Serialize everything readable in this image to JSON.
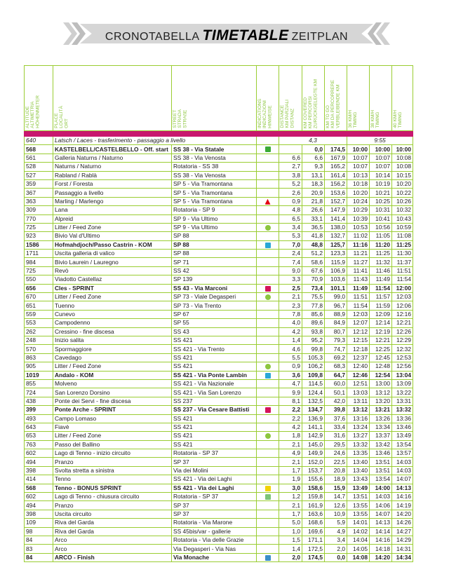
{
  "banner": {
    "left": "CRONOTABELLA",
    "main": "TIMETABLE",
    "right": "ZEITPLAN"
  },
  "headers": [
    "ALTITUDE\nALTIMETRIA\nHÖHENMETER",
    "PLACE\nLOCALITÀ\nORT",
    "STREET\nSTRADA\nSTRAßE",
    "INDICATIONS\nINDICAZIONI\nHINWEISE",
    "DISTANCE\nKM PARZIALI\nDISTANZ",
    "KM COVERED\nKM PERCORSI\nZURÜCKGELEGTE KM",
    "KM TO GO\nKM DA PERCORRERE\nVERBLEIBENDE KM",
    "36 KM/H\nTIMING",
    "38 KM/H\nTIMING",
    "40 KM/H\nTIMING"
  ],
  "colors": {
    "accent": "#8cc63f",
    "band": "#c8176e"
  },
  "transfer": {
    "altitude": "640",
    "place": "Latsch / Laces - trasferimento - passaggio a livello",
    "distance": "4,3",
    "time": "9:55"
  },
  "rows": [
    [
      "568",
      "KASTELBELL/CASTELBELLO - Off. start",
      "SS 38 - Via Statale",
      "start-flag-icon",
      "",
      "0,0",
      "174,5",
      "10:00",
      "10:00",
      "10:00",
      1
    ],
    [
      "561",
      "Galleria Naturns / Naturno",
      "SS 38 - Via Venosta",
      "",
      "6,6",
      "6,6",
      "167,9",
      "10:07",
      "10:07",
      "10:08",
      0
    ],
    [
      "528",
      "Naturns / Naturno",
      "Rotatoria - SS 38",
      "",
      "2,7",
      "9,3",
      "165,2",
      "10:07",
      "10:07",
      "10:08",
      0
    ],
    [
      "527",
      "Rabland / Rablà",
      "SS 38 - Via Venosta",
      "",
      "3,8",
      "13,1",
      "161,4",
      "10:13",
      "10:14",
      "10:15",
      0
    ],
    [
      "359",
      "Forst / Foresta",
      "SP 5 - Via Tramontana",
      "",
      "5,2",
      "18,3",
      "156,2",
      "10:18",
      "10:19",
      "10:20",
      0
    ],
    [
      "367",
      "Passaggio a livello",
      "SP 5 - Via Tramontana",
      "",
      "2,6",
      "20,9",
      "153,6",
      "10:20",
      "10:21",
      "10:22",
      0
    ],
    [
      "363",
      "Marling / Marlengo",
      "SP 5 - Via Tramontana",
      "danger-triangle-icon",
      "0,9",
      "21,8",
      "152,7",
      "10:24",
      "10:25",
      "10:26",
      0
    ],
    [
      "309",
      "Lana",
      "Rotatoria - SP 9",
      "",
      "4,8",
      "26,6",
      "147,9",
      "10:29",
      "10:31",
      "10:32",
      0
    ],
    [
      "770",
      "Alpreid",
      "SP 9 - Via Ultimo",
      "",
      "6,5",
      "33,1",
      "141,4",
      "10:39",
      "10:41",
      "10:43",
      0
    ],
    [
      "725",
      "Litter / Feed Zone",
      "SP 9 - Via Ultimo",
      "feed-zone-icon",
      "3,4",
      "36,5",
      "138,0",
      "10:53",
      "10:56",
      "10:59",
      0
    ],
    [
      "923",
      "Bivio Val d'Ultimo",
      "SP 88",
      "",
      "5,3",
      "41,8",
      "132,7",
      "11:02",
      "11:05",
      "11:08",
      0
    ],
    [
      "1586",
      "Hofmahdjoch/Passo Castrin - KOM",
      "SP 88",
      "kom-icon",
      "7,0",
      "48,8",
      "125,7",
      "11:16",
      "11:20",
      "11:25",
      1
    ],
    [
      "1711",
      "Uscita galleria di valico",
      "SP 88",
      "",
      "2,4",
      "51,2",
      "123,3",
      "11:21",
      "11:25",
      "11:30",
      0
    ],
    [
      "984",
      "Bivio Laurein / Lauregno",
      "SP 71",
      "",
      "7,4",
      "58,6",
      "115,9",
      "11:27",
      "11:32",
      "11:37",
      0
    ],
    [
      "725",
      "Revò",
      "SS 42",
      "",
      "9,0",
      "67,6",
      "106,9",
      "11:41",
      "11:46",
      "11:51",
      0
    ],
    [
      "550",
      "Viadotto Castellaz",
      "SP 139",
      "",
      "3,3",
      "70,9",
      "103,6",
      "11:43",
      "11:49",
      "11:54",
      0
    ],
    [
      "656",
      "Cles - SPRINT",
      "SS 43 - Via Marconi",
      "sprint-icon",
      "2,5",
      "73,4",
      "101,1",
      "11:49",
      "11:54",
      "12:00",
      1
    ],
    [
      "670",
      "Litter / Feed Zone",
      "SP 73 - Viale Degasperi",
      "feed-zone-icon",
      "2,1",
      "75,5",
      "99,0",
      "11:51",
      "11:57",
      "12:03",
      0
    ],
    [
      "651",
      "Tuenno",
      "SP 73 - Via Trento",
      "",
      "2,3",
      "77,8",
      "96,7",
      "11:54",
      "11:59",
      "12:06",
      0
    ],
    [
      "559",
      "Cunevo",
      "SP 67",
      "",
      "7,8",
      "85,6",
      "88,9",
      "12:03",
      "12:09",
      "12:16",
      0
    ],
    [
      "553",
      "Campodenno",
      "SP 55",
      "",
      "4,0",
      "89,6",
      "84,9",
      "12:07",
      "12:14",
      "12:21",
      0
    ],
    [
      "262",
      "Cressino - fine discesa",
      "SS 43",
      "",
      "4,2",
      "93,8",
      "80,7",
      "12:12",
      "12:19",
      "12:26",
      0
    ],
    [
      "248",
      "Inizio salita",
      "SS 421",
      "",
      "1,4",
      "95,2",
      "79,3",
      "12:15",
      "12:21",
      "12:29",
      0
    ],
    [
      "570",
      "Spormaggiore",
      "SS 421 - Via Trento",
      "",
      "4,6",
      "99,8",
      "74,7",
      "12:18",
      "12:25",
      "12:32",
      0
    ],
    [
      "863",
      "Cavedago",
      "SS 421",
      "",
      "5,5",
      "105,3",
      "69,2",
      "12:37",
      "12:45",
      "12:53",
      0
    ],
    [
      "905",
      "Litter / Feed Zone",
      "SS 421",
      "feed-zone-icon",
      "0,9",
      "106,2",
      "68,3",
      "12:40",
      "12:48",
      "12:56",
      0
    ],
    [
      "1019",
      "Andalo - KOM",
      "SS 421 - Via Ponte Lambin",
      "kom-icon",
      "3,6",
      "109,8",
      "64,7",
      "12:46",
      "12:54",
      "13:04",
      1
    ],
    [
      "855",
      "Molveno",
      "SS 421 - Via Nazionale",
      "",
      "4,7",
      "114,5",
      "60,0",
      "12:51",
      "13:00",
      "13:09",
      0
    ],
    [
      "724",
      "San Lorenzo Dorsino",
      "SS 421 - Via San Lorenzo",
      "",
      "9,9",
      "124,4",
      "50,1",
      "13:03",
      "13:12",
      "13:22",
      0
    ],
    [
      "438",
      "Ponte dei Servi - fine discesa",
      "SS 237",
      "",
      "8,1",
      "132,5",
      "42,0",
      "13:11",
      "13:20",
      "13:31",
      0
    ],
    [
      "399",
      "Ponte Arche - SPRINT",
      "SS 237 - Via Cesare Battisti",
      "sprint-icon",
      "2,2",
      "134,7",
      "39,8",
      "13:12",
      "13:21",
      "13:32",
      1
    ],
    [
      "493",
      "Campo Lomaso",
      "SS 421",
      "",
      "2,2",
      "136,9",
      "37,6",
      "13:16",
      "13:26",
      "13:36",
      0
    ],
    [
      "643",
      "Fiavè",
      "SS 421",
      "",
      "4,2",
      "141,1",
      "33,4",
      "13:24",
      "13:34",
      "13:46",
      0
    ],
    [
      "653",
      "Litter / Feed Zone",
      "SS 421",
      "feed-zone-icon",
      "1,8",
      "142,9",
      "31,6",
      "13:27",
      "13:37",
      "13:49",
      0
    ],
    [
      "763",
      "Passo del Ballino",
      "SS 421",
      "",
      "2,1",
      "145,0",
      "29,5",
      "13:32",
      "13:42",
      "13:54",
      0
    ],
    [
      "602",
      "Lago di Tenno - inizio circuito",
      "Rotatoria - SP 37",
      "",
      "4,9",
      "149,9",
      "24,6",
      "13:35",
      "13:46",
      "13:57",
      0
    ],
    [
      "494",
      "Pranzo",
      "SP 37",
      "",
      "2,1",
      "152,0",
      "22,5",
      "13:40",
      "13:51",
      "14:03",
      0
    ],
    [
      "398",
      "Svolta stretta a sinistra",
      "Via dei Molini",
      "",
      "1,7",
      "153,7",
      "20,8",
      "13:40",
      "13:51",
      "14:03",
      0
    ],
    [
      "414",
      "Tenno",
      "SS 421 - Via dei Laghi",
      "",
      "1,9",
      "155,6",
      "18,9",
      "13:43",
      "13:54",
      "14:07",
      0
    ],
    [
      "568",
      "Tenno - BONUS SPRINT",
      "SS 421 - Via dei Laghi",
      "bonus-sprint-icon",
      "3,0",
      "158,6",
      "15,9",
      "13:49",
      "14:00",
      "14:13",
      1
    ],
    [
      "602",
      "Lago di Tenno - chiusura circuito",
      "Rotatoria - SP 37",
      "circuit-icon",
      "1,2",
      "159,8",
      "14,7",
      "13:51",
      "14:03",
      "14:16",
      0
    ],
    [
      "494",
      "Pranzo",
      "SP 37",
      "",
      "2,1",
      "161,9",
      "12,6",
      "13:55",
      "14:06",
      "14:19",
      0
    ],
    [
      "398",
      "Uscita circuito",
      "SP 37",
      "",
      "1,7",
      "163,6",
      "10,9",
      "13:55",
      "14:07",
      "14:20",
      0
    ],
    [
      "109",
      "Riva del Garda",
      "Rotatoria - Via Marone",
      "",
      "5,0",
      "168,6",
      "5,9",
      "14:01",
      "14:13",
      "14:26",
      0
    ],
    [
      "98",
      "Riva del Garda",
      "SS 45bis/var - gallerie",
      "",
      "1,0",
      "169,6",
      "4,9",
      "14:02",
      "14:14",
      "14:27",
      0
    ],
    [
      "84",
      "Arco",
      "Rotatoria - Via delle Grazie",
      "",
      "1,5",
      "171,1",
      "3,4",
      "14:04",
      "14:16",
      "14:29",
      0
    ],
    [
      "83",
      "Arco",
      "Via Degasperi - Via Nas",
      "",
      "1,4",
      "172,5",
      "2,0",
      "14:05",
      "14:18",
      "14:31",
      0
    ],
    [
      "84",
      "ARCO - Finish",
      "Via Monache",
      "finish-icon",
      "2,0",
      "174,5",
      "0,0",
      "14:08",
      "14:20",
      "14:34",
      1
    ]
  ]
}
